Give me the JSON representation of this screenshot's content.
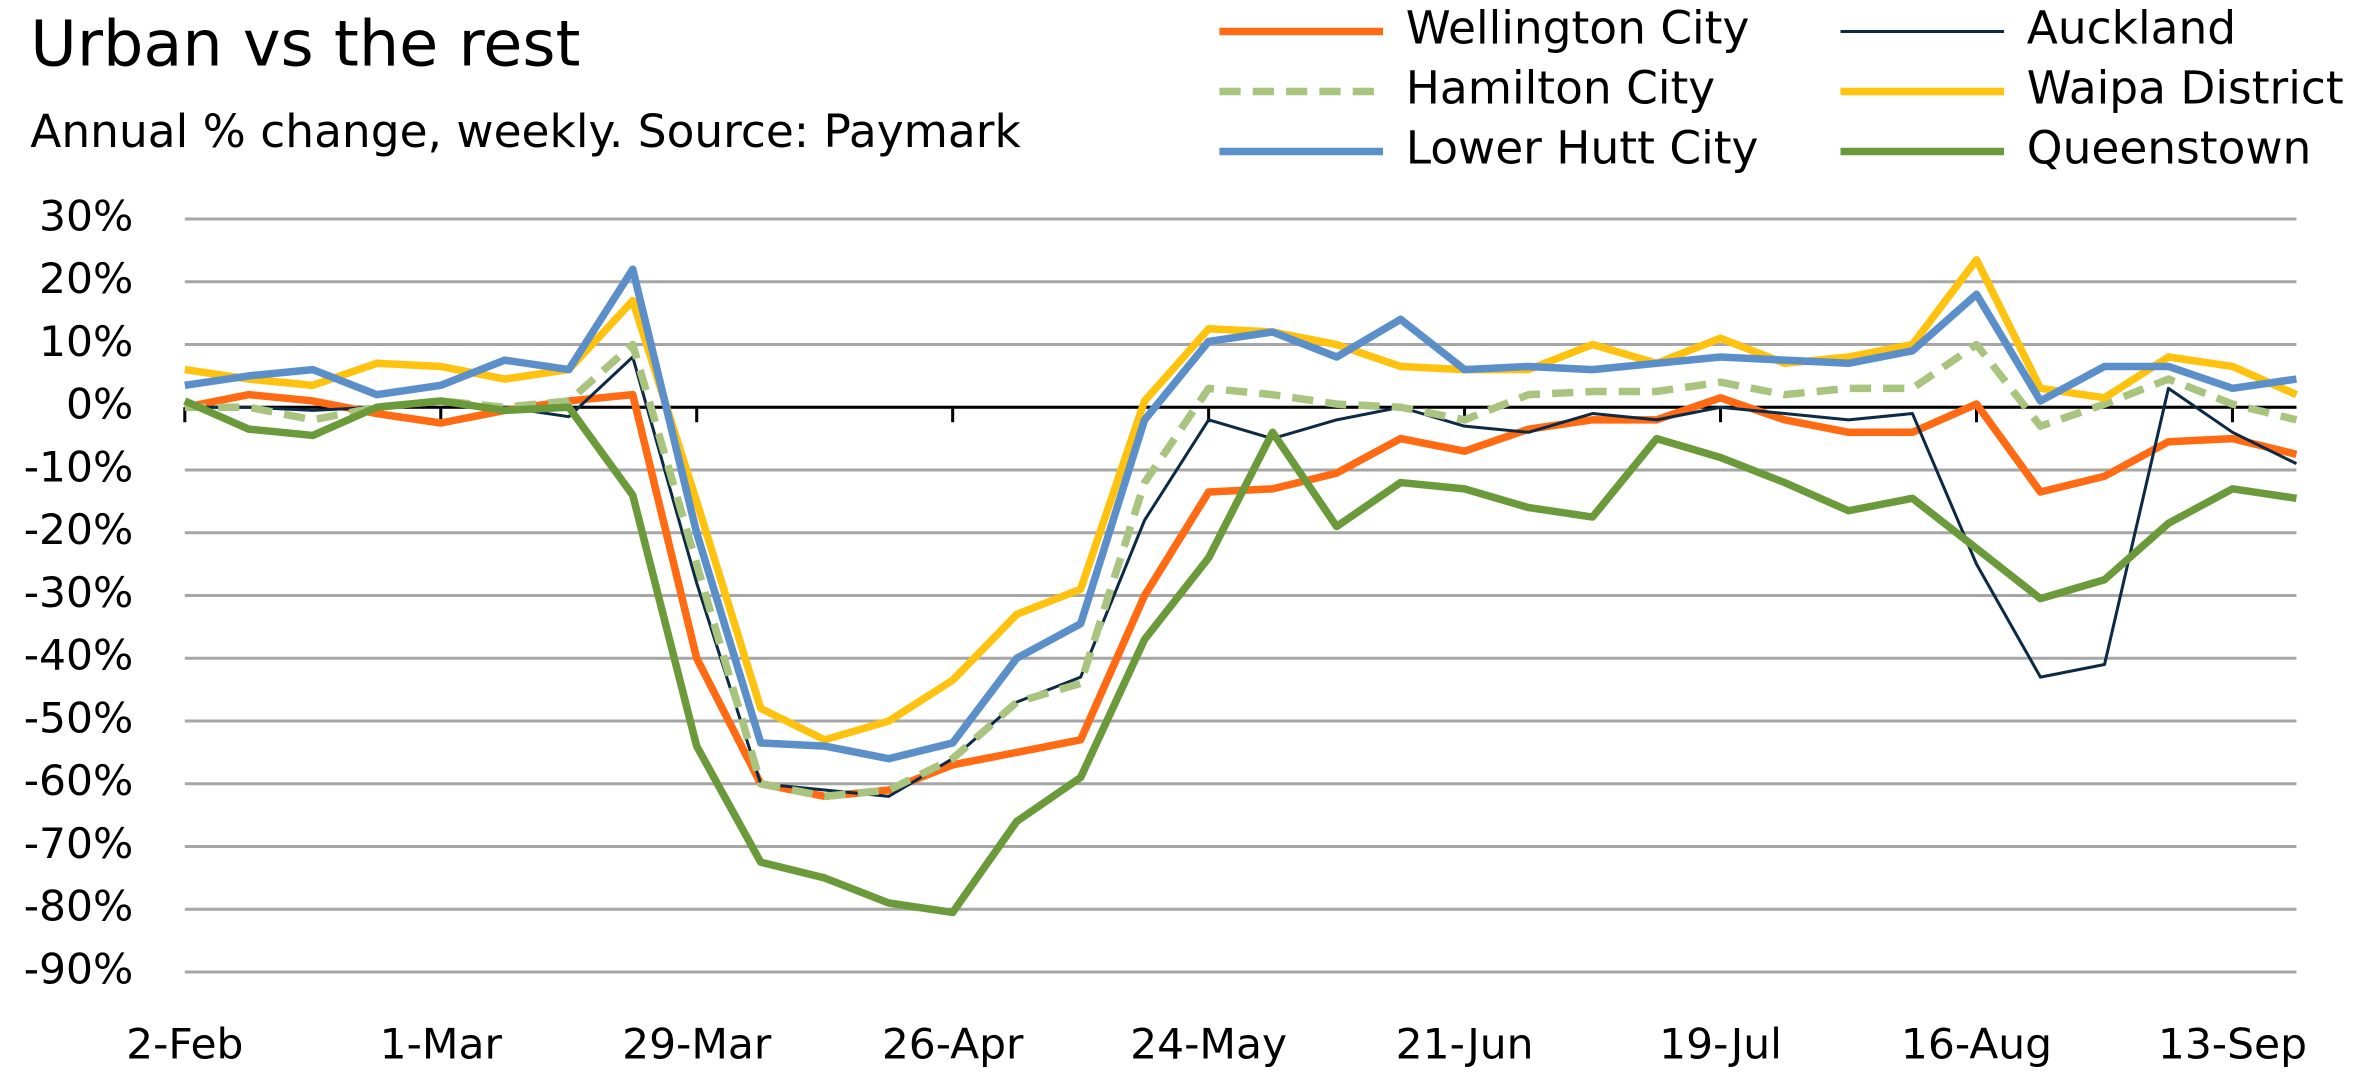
{
  "chart_data": {
    "type": "line",
    "title": "Urban vs the rest",
    "subtitle": "Annual % change, weekly. Source: Paymark",
    "categories": [
      "2-Feb",
      null,
      null,
      null,
      "1-Mar",
      null,
      null,
      null,
      "29-Mar",
      null,
      null,
      null,
      "26-Apr",
      null,
      null,
      null,
      "24-May",
      null,
      null,
      null,
      "21-Jun",
      null,
      null,
      null,
      "19-Jul",
      null,
      null,
      null,
      "16-Aug",
      null,
      null,
      null,
      "13-Sep",
      null
    ],
    "series": [
      {
        "name": "Wellington City",
        "color": "#ff6a13",
        "style": "solid",
        "values": [
          0,
          2,
          1,
          -1,
          -2.5,
          -0.5,
          1,
          2,
          -40,
          -60,
          -62,
          -61,
          -57,
          -55,
          -53,
          -30,
          -13.5,
          -13,
          -10.5,
          -5,
          -7,
          -3.5,
          -2,
          -2,
          1.5,
          -2,
          -4,
          -4,
          0.5,
          -13.5,
          -11,
          -5.5,
          -5,
          -7.5
        ]
      },
      {
        "name": "Auckland",
        "color": "#0d2a45",
        "style": "thin",
        "values": [
          0,
          0,
          -0.5,
          0,
          1,
          0,
          -1.5,
          8,
          -28,
          -60,
          -61,
          -62,
          -56,
          -47,
          -43,
          -18,
          -2,
          -5,
          -2,
          0,
          -3,
          -4,
          -1,
          -2,
          0,
          -1,
          -2,
          -1,
          -25,
          -43,
          -41,
          3,
          -4,
          -9
        ]
      },
      {
        "name": "Hamilton City",
        "color": "#a9c47f",
        "style": "dashed",
        "values": [
          0,
          0,
          -2,
          0,
          1,
          0,
          1,
          10,
          -25,
          -60,
          -62,
          -61,
          -56,
          -47,
          -44,
          -12,
          3,
          2,
          0.5,
          0,
          -2,
          2,
          2.5,
          2.5,
          4,
          2,
          3,
          3,
          10,
          -3,
          0.5,
          4.5,
          0.5,
          -2
        ]
      },
      {
        "name": "Waipa District",
        "color": "#ffc20e",
        "style": "solid",
        "values": [
          6,
          4.5,
          3.5,
          7,
          6.5,
          4.5,
          6,
          17,
          -15,
          -48,
          -53,
          -50,
          -43.5,
          -33,
          -29,
          1,
          12.5,
          12,
          10,
          6.5,
          6,
          6,
          10,
          7,
          11,
          7,
          8,
          10,
          23.5,
          3,
          1.5,
          8,
          6.5,
          2
        ]
      },
      {
        "name": "Lower Hutt City",
        "color": "#5b8fc9",
        "style": "solid",
        "values": [
          3.5,
          5,
          6,
          2,
          3.5,
          7.5,
          6,
          22,
          -20,
          -53.5,
          -54,
          -56,
          -53.5,
          -40,
          -34.5,
          -2,
          10.5,
          12,
          8,
          14,
          6,
          6.5,
          6,
          7,
          8,
          7.5,
          7,
          9,
          18,
          1,
          6.5,
          6.5,
          3,
          4.5
        ]
      },
      {
        "name": "Queenstown",
        "color": "#6a9a3a",
        "style": "solid",
        "values": [
          1,
          -3.5,
          -4.5,
          0,
          1,
          -0.5,
          0,
          -14,
          -54,
          -72.5,
          -75,
          -79,
          -80.5,
          -66,
          -59,
          -37,
          -24,
          -4,
          -19,
          -12,
          -13,
          -16,
          -17.5,
          -5,
          -8,
          -12,
          -16.5,
          -14.5,
          -22.5,
          -30.5,
          -27.5,
          -18.5,
          -13,
          -14.5
        ]
      }
    ],
    "ylim": [
      -90,
      30
    ],
    "yticks": [
      {
        "value": 30,
        "label": "30%"
      },
      {
        "value": 20,
        "label": "20%"
      },
      {
        "value": 10,
        "label": "10%"
      },
      {
        "value": 0,
        "label": "0%"
      },
      {
        "value": -10,
        "label": "-10%"
      },
      {
        "value": -20,
        "label": "-20%"
      },
      {
        "value": -30,
        "label": "-30%"
      },
      {
        "value": -40,
        "label": "-40%"
      },
      {
        "value": -50,
        "label": "-50%"
      },
      {
        "value": -60,
        "label": "-60%"
      },
      {
        "value": -70,
        "label": "-70%"
      },
      {
        "value": -80,
        "label": "-80%"
      },
      {
        "value": -90,
        "label": "-90%"
      }
    ],
    "grid": true,
    "legend": "top-right"
  }
}
